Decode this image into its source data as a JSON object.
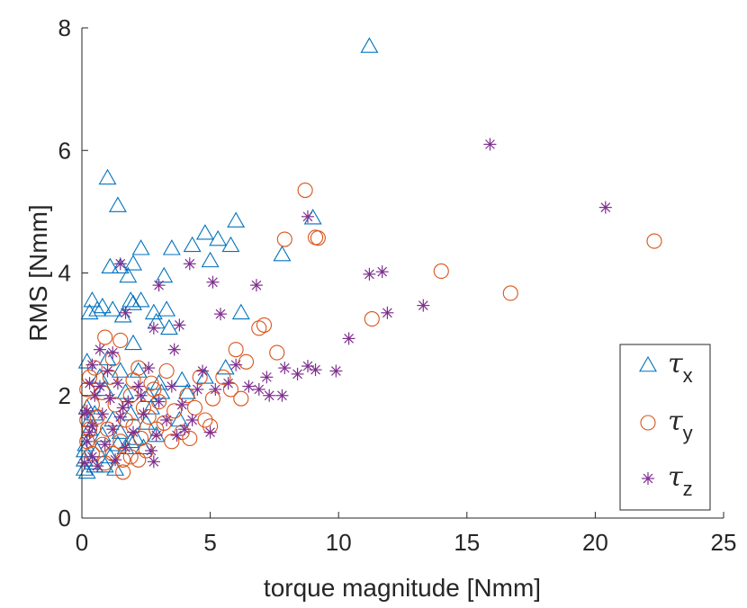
{
  "chart_data": {
    "type": "scatter",
    "title": "",
    "xlabel": "torque magnitude [Nmm]",
    "ylabel": "RMS [Nmm]",
    "xlim": [
      0,
      25
    ],
    "ylim": [
      0,
      8
    ],
    "xticks": [
      0,
      5,
      10,
      15,
      20,
      25
    ],
    "yticks": [
      0,
      2,
      4,
      6,
      8
    ],
    "xtick_labels": [
      "0",
      "5",
      "10",
      "15",
      "20",
      "25"
    ],
    "ytick_labels": [
      "0",
      "2",
      "4",
      "6",
      "8"
    ],
    "grid": false,
    "legend_position": "bottom-right",
    "series": [
      {
        "name": "τx",
        "symbol": "τ",
        "subscript": "x",
        "marker": "triangle",
        "color": "#0072BD",
        "points": [
          [
            11.2,
            7.7
          ],
          [
            1.0,
            5.55
          ],
          [
            1.4,
            5.1
          ],
          [
            6.0,
            4.85
          ],
          [
            9.0,
            4.9
          ],
          [
            4.8,
            4.65
          ],
          [
            5.3,
            4.55
          ],
          [
            5.8,
            4.45
          ],
          [
            4.3,
            4.45
          ],
          [
            3.5,
            4.4
          ],
          [
            2.3,
            4.4
          ],
          [
            7.8,
            4.3
          ],
          [
            2.0,
            4.15
          ],
          [
            1.1,
            4.1
          ],
          [
            1.5,
            4.1
          ],
          [
            5.0,
            4.2
          ],
          [
            1.8,
            3.95
          ],
          [
            3.2,
            3.95
          ],
          [
            0.4,
            3.55
          ],
          [
            0.8,
            3.45
          ],
          [
            0.3,
            3.35
          ],
          [
            1.2,
            3.4
          ],
          [
            1.6,
            3.3
          ],
          [
            2.0,
            3.5
          ],
          [
            2.3,
            3.55
          ],
          [
            2.8,
            3.35
          ],
          [
            3.3,
            3.4
          ],
          [
            3.4,
            3.1
          ],
          [
            6.2,
            3.35
          ],
          [
            1.9,
            3.55
          ],
          [
            0.6,
            3.4
          ],
          [
            2.9,
            3.2
          ],
          [
            2.0,
            2.85
          ],
          [
            1.0,
            2.6
          ],
          [
            0.2,
            2.55
          ],
          [
            0.7,
            2.3
          ],
          [
            1.5,
            2.4
          ],
          [
            2.2,
            2.4
          ],
          [
            3.0,
            2.2
          ],
          [
            3.9,
            2.25
          ],
          [
            4.8,
            2.3
          ],
          [
            5.6,
            2.45
          ],
          [
            0.9,
            2.1
          ],
          [
            1.7,
            2.05
          ],
          [
            2.6,
            2.0
          ],
          [
            3.1,
            2.05
          ],
          [
            4.1,
            2.05
          ],
          [
            0.2,
            1.8
          ],
          [
            0.5,
            1.7
          ],
          [
            1.2,
            1.6
          ],
          [
            1.9,
            1.7
          ],
          [
            2.7,
            1.8
          ],
          [
            3.8,
            1.6
          ],
          [
            0.3,
            1.45
          ],
          [
            0.8,
            1.35
          ],
          [
            1.4,
            1.2
          ],
          [
            2.1,
            1.3
          ],
          [
            2.9,
            1.35
          ],
          [
            0.15,
            1.2
          ],
          [
            0.6,
            1.1
          ],
          [
            1.1,
            1.0
          ],
          [
            1.7,
            1.15
          ],
          [
            2.4,
            1.15
          ],
          [
            0.1,
            0.95
          ],
          [
            0.4,
            0.9
          ],
          [
            0.9,
            0.85
          ],
          [
            1.3,
            0.8
          ],
          [
            0.1,
            0.8
          ],
          [
            0.2,
            0.75
          ],
          [
            0.5,
            0.85
          ],
          [
            0.3,
            1.6
          ],
          [
            1.5,
            1.4
          ],
          [
            0.1,
            1.1
          ],
          [
            1.9,
            1.25
          ],
          [
            2.5,
            1.55
          ]
        ]
      },
      {
        "name": "τy",
        "symbol": "τ",
        "subscript": "y",
        "marker": "circle",
        "color": "#D95319",
        "points": [
          [
            8.7,
            5.35
          ],
          [
            9.1,
            4.58
          ],
          [
            9.2,
            4.57
          ],
          [
            7.9,
            4.55
          ],
          [
            22.3,
            4.52
          ],
          [
            14.0,
            4.03
          ],
          [
            16.7,
            3.67
          ],
          [
            11.3,
            3.25
          ],
          [
            7.1,
            3.15
          ],
          [
            6.9,
            3.1
          ],
          [
            0.9,
            2.95
          ],
          [
            1.5,
            2.9
          ],
          [
            6.0,
            2.75
          ],
          [
            7.6,
            2.7
          ],
          [
            1.2,
            2.6
          ],
          [
            0.5,
            2.45
          ],
          [
            2.2,
            2.45
          ],
          [
            3.3,
            2.4
          ],
          [
            6.4,
            2.55
          ],
          [
            5.5,
            2.3
          ],
          [
            0.3,
            2.3
          ],
          [
            1.1,
            2.3
          ],
          [
            2.0,
            2.25
          ],
          [
            4.6,
            2.3
          ],
          [
            5.8,
            2.1
          ],
          [
            6.2,
            1.95
          ],
          [
            0.2,
            2.1
          ],
          [
            0.8,
            2.05
          ],
          [
            1.9,
            2.0
          ],
          [
            2.8,
            2.1
          ],
          [
            4.1,
            2.0
          ],
          [
            5.1,
            1.95
          ],
          [
            0.4,
            1.85
          ],
          [
            1.3,
            1.85
          ],
          [
            2.4,
            1.8
          ],
          [
            3.6,
            1.75
          ],
          [
            4.4,
            1.8
          ],
          [
            0.6,
            1.65
          ],
          [
            1.7,
            1.6
          ],
          [
            2.6,
            1.65
          ],
          [
            3.2,
            1.55
          ],
          [
            4.8,
            1.6
          ],
          [
            0.3,
            1.45
          ],
          [
            1.0,
            1.45
          ],
          [
            2.0,
            1.5
          ],
          [
            2.9,
            1.45
          ],
          [
            3.9,
            1.4
          ],
          [
            0.2,
            1.25
          ],
          [
            0.8,
            1.2
          ],
          [
            1.5,
            1.25
          ],
          [
            2.3,
            1.3
          ],
          [
            3.5,
            1.25
          ],
          [
            0.4,
            1.05
          ],
          [
            1.2,
            1.05
          ],
          [
            1.9,
            1.0
          ],
          [
            2.5,
            1.1
          ],
          [
            0.9,
            0.9
          ],
          [
            1.6,
            0.95
          ],
          [
            2.2,
            0.95
          ],
          [
            1.6,
            0.75
          ],
          [
            0.2,
            1.6
          ],
          [
            4.2,
            1.3
          ],
          [
            5.0,
            1.5
          ],
          [
            3.0,
            1.9
          ],
          [
            2.7,
            2.2
          ]
        ]
      },
      {
        "name": "τz",
        "symbol": "τ",
        "subscript": "z",
        "marker": "asterisk",
        "color": "#7E2F8E",
        "points": [
          [
            15.9,
            6.1
          ],
          [
            20.4,
            5.07
          ],
          [
            8.8,
            4.92
          ],
          [
            11.7,
            4.02
          ],
          [
            11.2,
            3.98
          ],
          [
            4.2,
            4.15
          ],
          [
            1.5,
            4.15
          ],
          [
            5.1,
            3.85
          ],
          [
            3.0,
            3.8
          ],
          [
            6.8,
            3.8
          ],
          [
            13.3,
            3.47
          ],
          [
            11.9,
            3.35
          ],
          [
            1.7,
            3.35
          ],
          [
            5.4,
            3.33
          ],
          [
            3.8,
            3.15
          ],
          [
            2.8,
            3.1
          ],
          [
            10.4,
            2.93
          ],
          [
            3.6,
            2.75
          ],
          [
            0.7,
            2.75
          ],
          [
            1.2,
            2.7
          ],
          [
            6.0,
            2.5
          ],
          [
            7.9,
            2.45
          ],
          [
            8.8,
            2.48
          ],
          [
            9.1,
            2.42
          ],
          [
            9.9,
            2.4
          ],
          [
            8.4,
            2.35
          ],
          [
            7.2,
            2.3
          ],
          [
            4.7,
            2.4
          ],
          [
            0.4,
            2.5
          ],
          [
            1.0,
            2.4
          ],
          [
            2.6,
            2.45
          ],
          [
            5.7,
            2.2
          ],
          [
            6.5,
            2.15
          ],
          [
            6.9,
            2.1
          ],
          [
            7.3,
            2.0
          ],
          [
            7.8,
            2.0
          ],
          [
            0.3,
            2.2
          ],
          [
            1.4,
            2.2
          ],
          [
            2.2,
            2.15
          ],
          [
            3.5,
            2.15
          ],
          [
            4.5,
            2.1
          ],
          [
            5.2,
            2.1
          ],
          [
            0.5,
            2.0
          ],
          [
            1.1,
            1.95
          ],
          [
            1.8,
            1.9
          ],
          [
            3.0,
            1.9
          ],
          [
            3.9,
            1.85
          ],
          [
            0.2,
            1.75
          ],
          [
            0.8,
            1.7
          ],
          [
            1.5,
            1.65
          ],
          [
            2.4,
            1.7
          ],
          [
            3.3,
            1.6
          ],
          [
            4.3,
            1.6
          ],
          [
            0.4,
            1.5
          ],
          [
            1.2,
            1.45
          ],
          [
            2.0,
            1.4
          ],
          [
            2.9,
            1.35
          ],
          [
            4.0,
            1.45
          ],
          [
            5.0,
            1.4
          ],
          [
            0.2,
            1.25
          ],
          [
            0.9,
            1.2
          ],
          [
            1.7,
            1.15
          ],
          [
            2.7,
            1.1
          ],
          [
            0.4,
            1.0
          ],
          [
            1.3,
            0.95
          ],
          [
            2.8,
            0.92
          ],
          [
            0.1,
            0.9
          ],
          [
            0.6,
            0.85
          ],
          [
            0.3,
            1.4
          ],
          [
            1.6,
            1.8
          ],
          [
            2.3,
            2.0
          ],
          [
            3.7,
            1.35
          ],
          [
            0.1,
            1.7
          ],
          [
            0.7,
            2.15
          ]
        ]
      }
    ]
  }
}
